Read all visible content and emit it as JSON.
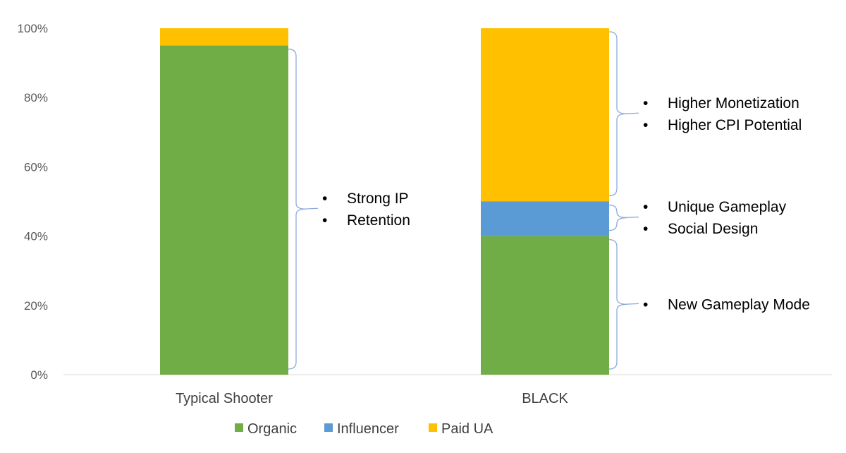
{
  "chart_data": {
    "type": "bar",
    "stacked": true,
    "categories": [
      "Typical Shooter",
      "BLACK"
    ],
    "series": [
      {
        "name": "Organic",
        "color": "#70ad47",
        "values": [
          95,
          40
        ]
      },
      {
        "name": "Influencer",
        "color": "#5b9bd5",
        "values": [
          0,
          10
        ]
      },
      {
        "name": "Paid UA",
        "color": "#ffc000",
        "values": [
          5,
          50
        ]
      }
    ],
    "y_ticks": [
      "0%",
      "20%",
      "40%",
      "60%",
      "80%",
      "100%"
    ],
    "ylim": [
      0,
      100
    ],
    "legend_position": "bottom",
    "annotations": [
      {
        "category": "Typical Shooter",
        "from": 0,
        "to": 95,
        "bullets": [
          "Strong IP",
          "Retention"
        ]
      },
      {
        "category": "BLACK",
        "from": 50,
        "to": 100,
        "bullets": [
          "Higher Monetization",
          "Higher CPI Potential"
        ]
      },
      {
        "category": "BLACK",
        "from": 40,
        "to": 50,
        "bullets": [
          "Unique Gameplay",
          "Social Design"
        ]
      },
      {
        "category": "BLACK",
        "from": 0,
        "to": 40,
        "bullets": [
          "New Gameplay Mode"
        ]
      }
    ]
  }
}
